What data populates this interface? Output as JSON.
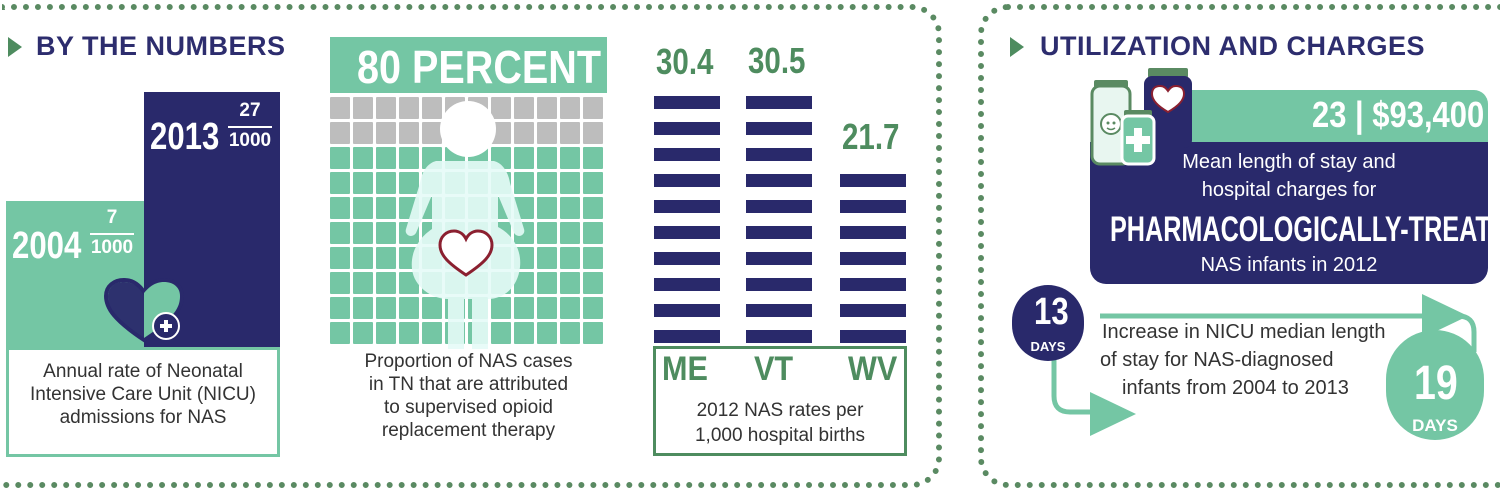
{
  "left_section": {
    "heading": "BY THE NUMBERS",
    "rate_panel": {
      "year_2013": "2013",
      "num_2013": "27",
      "den_2013": "1000",
      "year_2004": "2004",
      "num_2004": "7",
      "den_2004": "1000",
      "caption_line1": "Annual rate of Neonatal",
      "caption_line2": "Intensive Care Unit (NICU)",
      "caption_line3": "admissions for NAS",
      "icon": "heart-plus-icon"
    },
    "percent_panel": {
      "title": "80 PERCENT",
      "percent_value": 80,
      "caption_line1": "Proportion of NAS cases",
      "caption_line2": "in TN that are attributed",
      "caption_line3": "to supervised opioid",
      "caption_line4": "replacement therapy",
      "icon": "pregnant-woman-icon"
    },
    "states_panel": {
      "caption_line1": "2012 NAS rates per",
      "caption_line2": "1,000 hospital births"
    }
  },
  "chart_data": {
    "type": "bar",
    "categories": [
      "ME",
      "VT",
      "WV"
    ],
    "values": [
      30.4,
      30.5,
      21.7
    ],
    "value_labels": [
      "30.4",
      "30.5",
      "21.7"
    ],
    "title": "",
    "xlabel": "",
    "ylabel": "",
    "ylim": [
      0,
      30.5
    ]
  },
  "right_section": {
    "heading": "UTILIZATION AND CHARGES",
    "charges": {
      "stat": "23 | $93,400",
      "line1": "Mean length of stay and",
      "line2": "hospital charges  for",
      "emphasis": "PHARMACOLOGICALLY-TREATED",
      "line3": "NAS infants in 2012",
      "icon": "medicine-bottles-icon"
    },
    "stay": {
      "start_value": "13",
      "start_unit": "DAYS",
      "end_value": "19",
      "end_unit": "DAYS",
      "line1": "Increase in NICU median length",
      "line2": "of stay for NAS-diagnosed",
      "line3": "infants from 2004 to 2013"
    }
  },
  "colors": {
    "navy": "#29296b",
    "mint": "#74c6a4",
    "green_dark": "#4e8c5f",
    "gray": "#bdbdbd"
  }
}
